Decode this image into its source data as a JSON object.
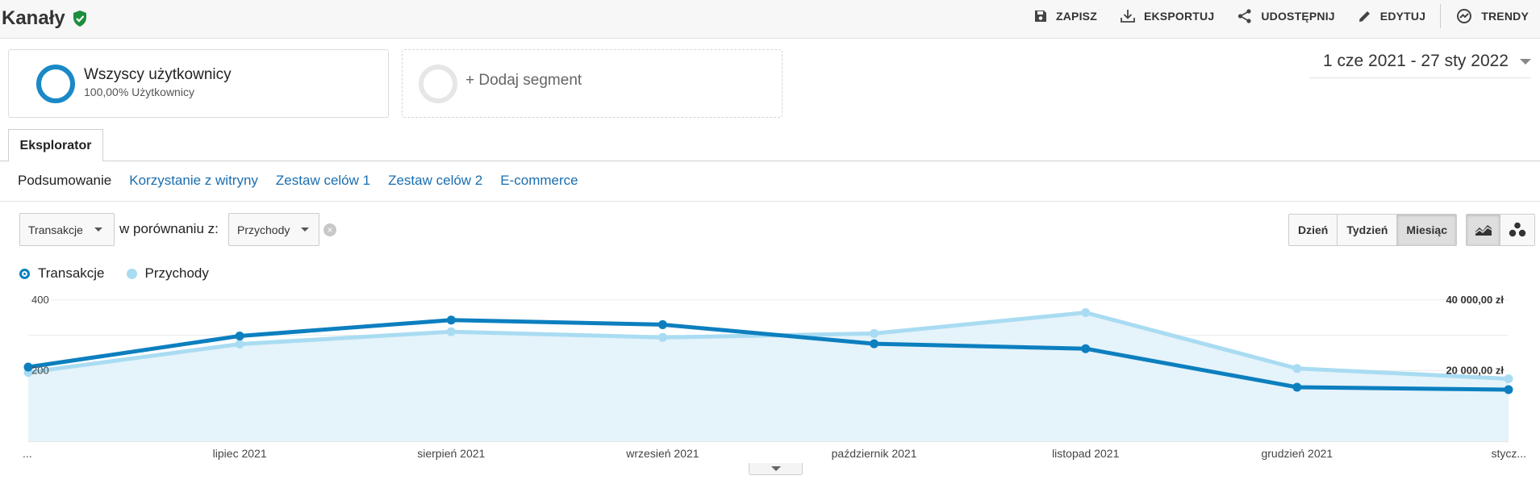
{
  "header": {
    "title": "Kanały",
    "actions": [
      {
        "label": "ZAPISZ",
        "icon": "save-icon"
      },
      {
        "label": "EKSPORTUJ",
        "icon": "download-icon"
      },
      {
        "label": "UDOSTĘPNIJ",
        "icon": "share-icon"
      },
      {
        "label": "EDYTUJ",
        "icon": "pencil-icon"
      },
      {
        "label": "TRENDY",
        "icon": "insights-icon"
      }
    ]
  },
  "segments": {
    "active": {
      "name": "Wszyscy użytkownicy",
      "sub": "100,00% Użytkownicy"
    },
    "add_label": "+ Dodaj segment"
  },
  "date_range": "1 cze 2021 - 27 sty 2022",
  "tab": "Eksplorator",
  "subnav": {
    "current": "Podsumowanie",
    "links": [
      "Korzystanie z witryny",
      "Zestaw celów 1",
      "Zestaw celów 2",
      "E-commerce"
    ]
  },
  "controls": {
    "metric1": "Transakcje",
    "compare_label": "w porównaniu z:",
    "metric2": "Przychody",
    "granularity": [
      "Dzień",
      "Tydzień",
      "Miesiąc"
    ],
    "granularity_selected": "Miesiąc"
  },
  "colors": {
    "series1": "#0c7fbf",
    "series2": "#a9dcf2",
    "fill": "#e5f3fa"
  },
  "chart_data": {
    "type": "line",
    "x": [
      "...",
      "lipiec 2021",
      "sierpień 2021",
      "wrzesień 2021",
      "październik 2021",
      "listopad 2021",
      "grudzień 2021",
      "stycz..."
    ],
    "series": [
      {
        "name": "Transakcje",
        "axis": "left",
        "values": [
          210,
          298,
          343,
          330,
          276,
          262,
          153,
          146
        ]
      },
      {
        "name": "Przychody",
        "axis": "right",
        "values": [
          19500,
          27500,
          31000,
          29400,
          30500,
          36400,
          20600,
          17700
        ]
      }
    ],
    "y_left": {
      "ticks": [
        {
          "value": 200,
          "label": "200"
        },
        {
          "value": 400,
          "label": "400"
        }
      ],
      "range": [
        0,
        420
      ]
    },
    "y_right": {
      "ticks": [
        {
          "value": 20000,
          "label": "20 000,00 zł"
        },
        {
          "value": 40000,
          "label": "40 000,00 zł"
        }
      ],
      "range": [
        0,
        42000
      ]
    },
    "area_fill_series": "Transakcje",
    "grid": true,
    "legend": "top-left"
  }
}
